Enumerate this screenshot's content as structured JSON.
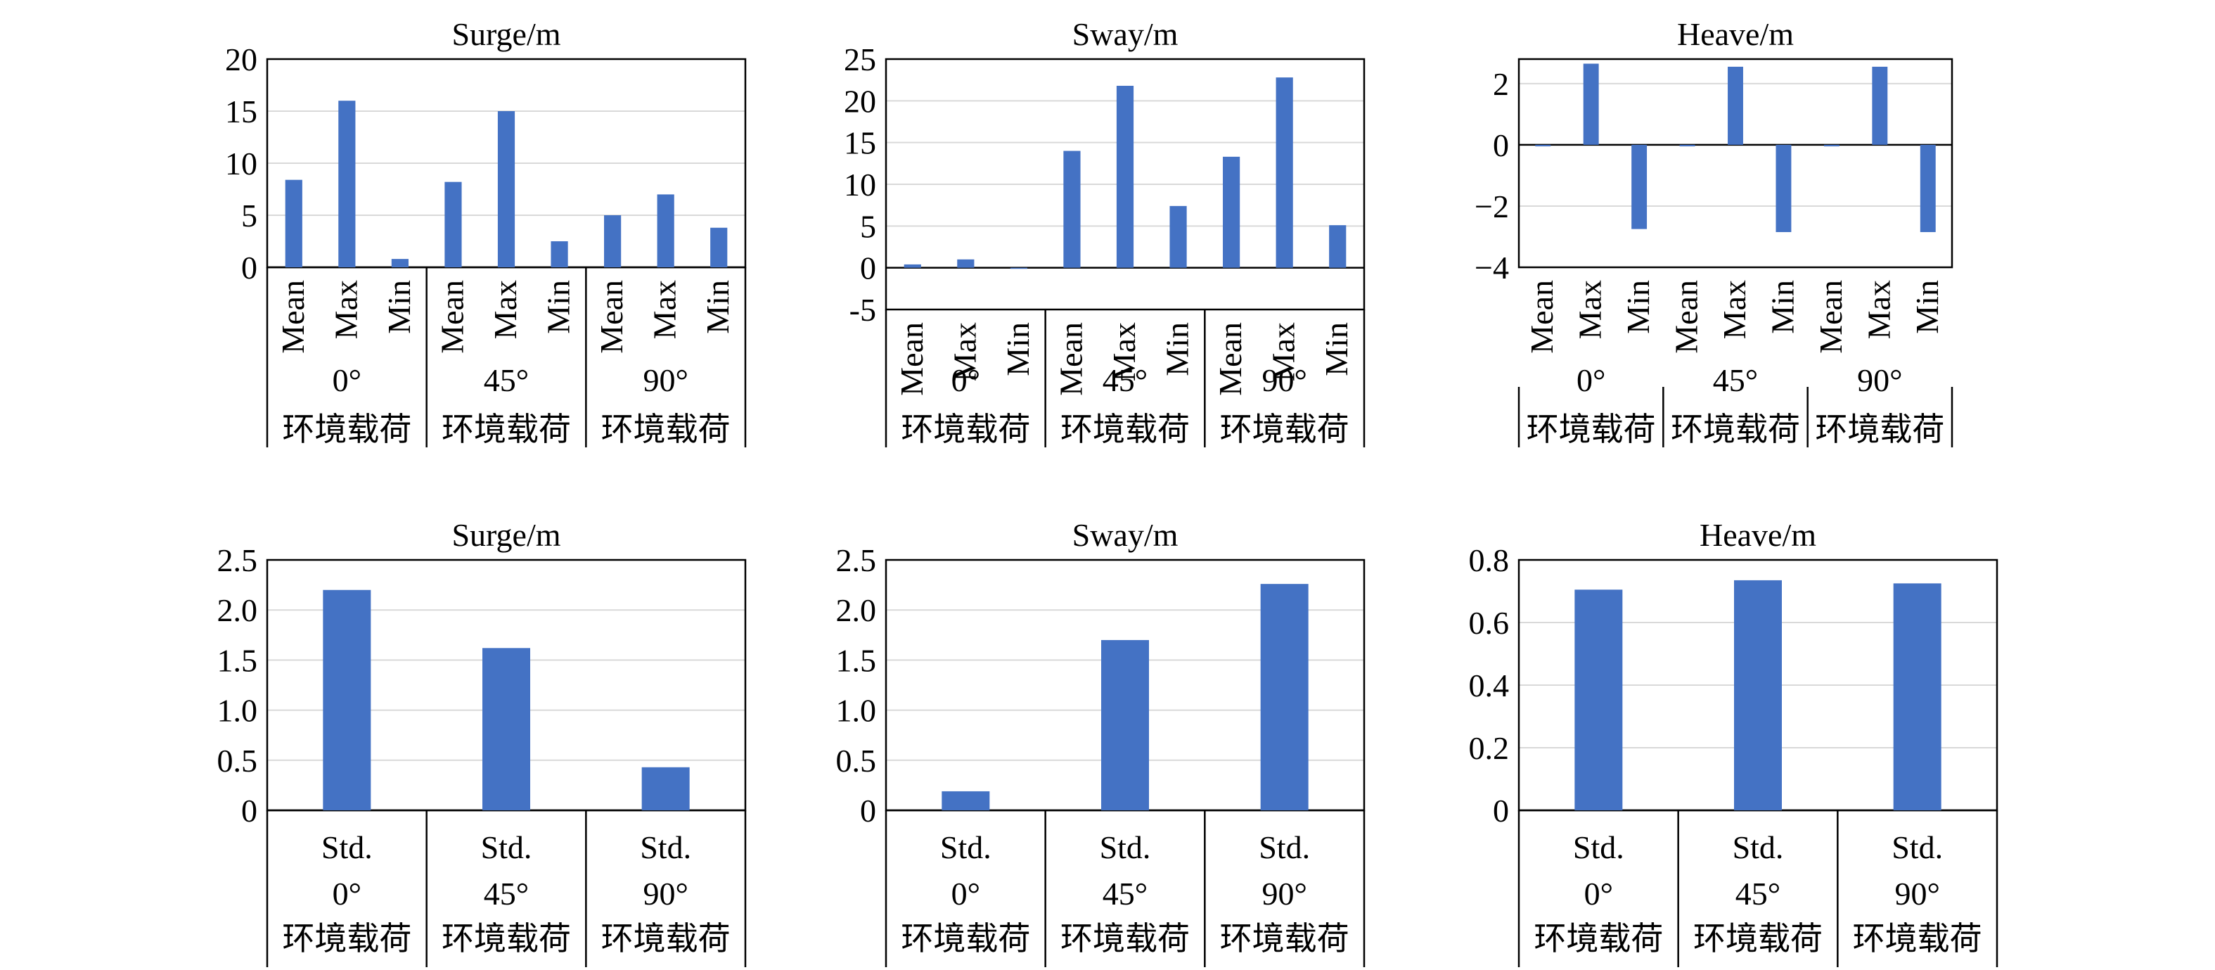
{
  "figure": {
    "bar_color": "#4472C4",
    "grid_color": "#d9d9d9",
    "axis_color": "#000000"
  },
  "chart_data": [
    {
      "type": "bar",
      "title": "Surge/m",
      "groups": [
        {
          "line1": "0°",
          "line2": "环境载荷"
        },
        {
          "line1": "45°",
          "line2": "环境载荷"
        },
        {
          "line1": "90°",
          "line2": "环境载荷"
        }
      ],
      "category_labels": [
        "Mean",
        "Max",
        "Min"
      ],
      "values": [
        [
          8.4,
          16.0,
          0.8
        ],
        [
          8.2,
          15.0,
          2.5
        ],
        [
          5.0,
          7.0,
          3.8
        ]
      ],
      "ylim": [
        0,
        20
      ],
      "yticks": [
        0,
        5,
        10,
        15,
        20
      ],
      "grid": true
    },
    {
      "type": "bar",
      "title": "Sway/m",
      "groups": [
        {
          "line1": "0°",
          "line2": "环境载荷"
        },
        {
          "line1": "45°",
          "line2": "环境载荷"
        },
        {
          "line1": "90°",
          "line2": "环境载荷"
        }
      ],
      "category_labels": [
        "Mean",
        "Max",
        "Min"
      ],
      "values": [
        [
          0.4,
          1.0,
          0.0
        ],
        [
          14.0,
          21.8,
          7.4
        ],
        [
          13.3,
          22.8,
          5.1
        ]
      ],
      "ylim": [
        -5,
        25
      ],
      "yticks": [
        -5,
        0,
        5,
        10,
        15,
        20,
        25
      ],
      "grid": true
    },
    {
      "type": "bar",
      "title": "Heave/m",
      "groups": [
        {
          "line1": "0°",
          "line2": "环境载荷"
        },
        {
          "line1": "45°",
          "line2": "环境载荷"
        },
        {
          "line1": "90°",
          "line2": "环境载荷"
        }
      ],
      "category_labels": [
        "Mean",
        "Max",
        "Min"
      ],
      "values": [
        [
          -0.05,
          2.65,
          -2.75
        ],
        [
          -0.05,
          2.55,
          -2.85
        ],
        [
          -0.05,
          2.55,
          -2.85
        ]
      ],
      "ylim": [
        -4,
        2.8
      ],
      "yticks": [
        -4,
        -2,
        0,
        2
      ],
      "ytick_labels": [
        "−4",
        "−2",
        "0",
        "2"
      ],
      "grid": true
    },
    {
      "type": "bar",
      "title": "Surge/m",
      "groups": [
        {
          "line1": "Std.",
          "line2": "0°",
          "line3": "环境载荷"
        },
        {
          "line1": "Std.",
          "line2": "45°",
          "line3": "环境载荷"
        },
        {
          "line1": "Std.",
          "line2": "90°",
          "line3": "环境载荷"
        }
      ],
      "values": [
        2.2,
        1.62,
        0.43
      ],
      "ylim": [
        0,
        2.5
      ],
      "yticks": [
        0,
        0.5,
        1.0,
        1.5,
        2.0,
        2.5
      ],
      "ytick_labels": [
        "0",
        "0.5",
        "1.0",
        "1.5",
        "2.0",
        "2.5"
      ],
      "grid": true
    },
    {
      "type": "bar",
      "title": "Sway/m",
      "groups": [
        {
          "line1": "Std.",
          "line2": "0°",
          "line3": "环境载荷"
        },
        {
          "line1": "Std.",
          "line2": "45°",
          "line3": "环境载荷"
        },
        {
          "line1": "Std.",
          "line2": "90°",
          "line3": "环境载荷"
        }
      ],
      "values": [
        0.19,
        1.7,
        2.26
      ],
      "ylim": [
        0,
        2.5
      ],
      "yticks": [
        0,
        0.5,
        1.0,
        1.5,
        2.0,
        2.5
      ],
      "ytick_labels": [
        "0",
        "0.5",
        "1.0",
        "1.5",
        "2.0",
        "2.5"
      ],
      "grid": true
    },
    {
      "type": "bar",
      "title": "Heave/m",
      "groups": [
        {
          "line1": "Std.",
          "line2": "0°",
          "line3": "环境载荷"
        },
        {
          "line1": "Std.",
          "line2": "45°",
          "line3": "环境载荷"
        },
        {
          "line1": "Std.",
          "line2": "90°",
          "line3": "环境载荷"
        }
      ],
      "values": [
        0.705,
        0.735,
        0.725
      ],
      "ylim": [
        0,
        0.8
      ],
      "yticks": [
        0,
        0.2,
        0.4,
        0.6,
        0.8
      ],
      "ytick_labels": [
        "0",
        "0.2",
        "0.4",
        "0.6",
        "0.8"
      ],
      "grid": true
    }
  ]
}
